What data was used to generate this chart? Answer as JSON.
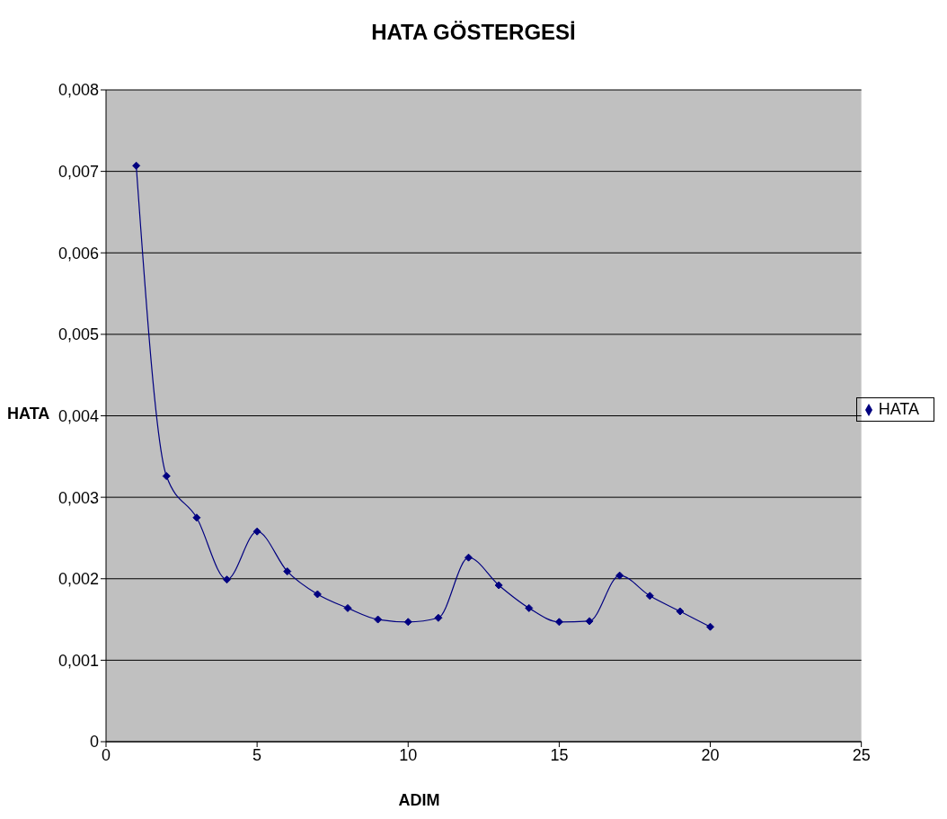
{
  "chart_data": {
    "type": "line",
    "title": "HATA GÖSTERGESİ",
    "xlabel": "ADIM",
    "ylabel": "HATA",
    "x": [
      1,
      2,
      3,
      4,
      5,
      6,
      7,
      8,
      9,
      10,
      11,
      12,
      13,
      14,
      15,
      16,
      17,
      18,
      19,
      20
    ],
    "series": [
      {
        "name": "HATA",
        "color": "#000080",
        "values": [
          0.00707,
          0.00326,
          0.00275,
          0.00199,
          0.00258,
          0.00209,
          0.00181,
          0.00164,
          0.0015,
          0.00147,
          0.00152,
          0.00226,
          0.00192,
          0.00164,
          0.00147,
          0.00148,
          0.00204,
          0.00179,
          0.0016,
          0.00141
        ]
      }
    ],
    "xlim": [
      0,
      25
    ],
    "xticks": [
      0,
      5,
      10,
      15,
      20,
      25
    ],
    "ylim": [
      0,
      0.008
    ],
    "yticks": [
      {
        "value": 0,
        "label": "0"
      },
      {
        "value": 0.001,
        "label": "0,001"
      },
      {
        "value": 0.002,
        "label": "0,002"
      },
      {
        "value": 0.003,
        "label": "0,003"
      },
      {
        "value": 0.004,
        "label": "0,004"
      },
      {
        "value": 0.005,
        "label": "0,005"
      },
      {
        "value": 0.006,
        "label": "0,006"
      },
      {
        "value": 0.007,
        "label": "0,007"
      },
      {
        "value": 0.008,
        "label": "0,008"
      }
    ],
    "grid": "y",
    "legend": "right",
    "marker": "diamond",
    "line_style": "solid"
  }
}
